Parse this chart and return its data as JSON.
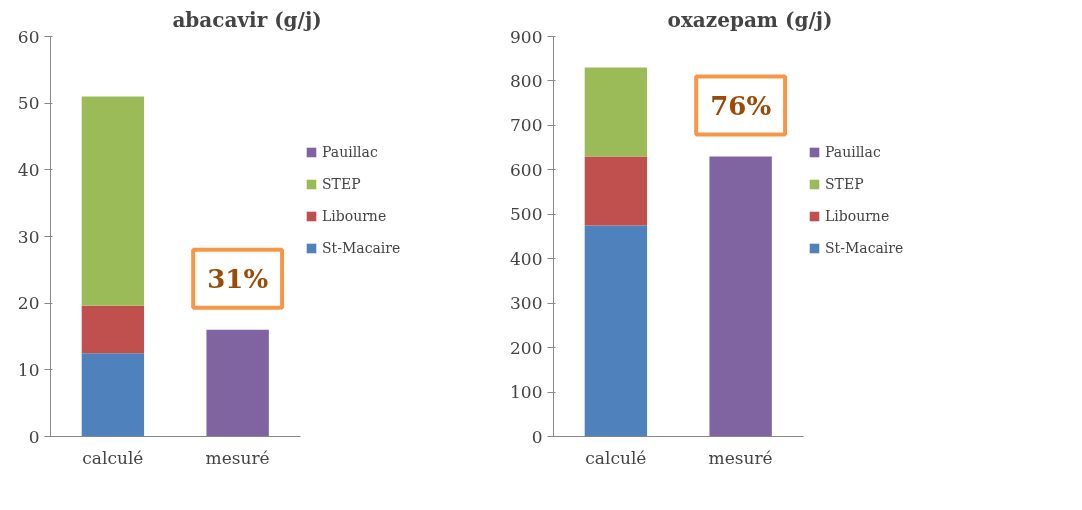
{
  "chart_data": [
    {
      "type": "bar",
      "title": "abacavir (g/j)",
      "stacked": true,
      "categories": [
        "calculé",
        "mesuré"
      ],
      "ylim": [
        0,
        60
      ],
      "yticks": [
        0,
        10,
        20,
        30,
        40,
        50,
        60
      ],
      "grid": false,
      "legend": "right",
      "annotations": [
        "31%"
      ],
      "series": [
        {
          "name": "St-Macaire",
          "color": "#4f81bd",
          "values": [
            12.5,
            null
          ]
        },
        {
          "name": "Libourne",
          "color": "#c0504d",
          "values": [
            7.1,
            null
          ]
        },
        {
          "name": "STEP",
          "color": "#9bbb59",
          "values": [
            31.4,
            null
          ]
        },
        {
          "name": "Pauillac",
          "color": "#8064a2",
          "values": [
            null,
            16
          ]
        }
      ]
    },
    {
      "type": "bar",
      "title": "oxazepam (g/j)",
      "stacked": true,
      "categories": [
        "calculé",
        "mesuré"
      ],
      "ylim": [
        0,
        900
      ],
      "yticks": [
        0,
        100,
        200,
        300,
        400,
        500,
        600,
        700,
        800,
        900
      ],
      "grid": false,
      "legend": "right",
      "annotations": [
        "76%"
      ],
      "series": [
        {
          "name": "St-Macaire",
          "color": "#4f81bd",
          "values": [
            475,
            null
          ]
        },
        {
          "name": "Libourne",
          "color": "#c0504d",
          "values": [
            155,
            null
          ]
        },
        {
          "name": "STEP",
          "color": "#9bbb59",
          "values": [
            200,
            null
          ]
        },
        {
          "name": "Pauillac",
          "color": "#8064a2",
          "values": [
            null,
            630
          ]
        }
      ]
    }
  ]
}
